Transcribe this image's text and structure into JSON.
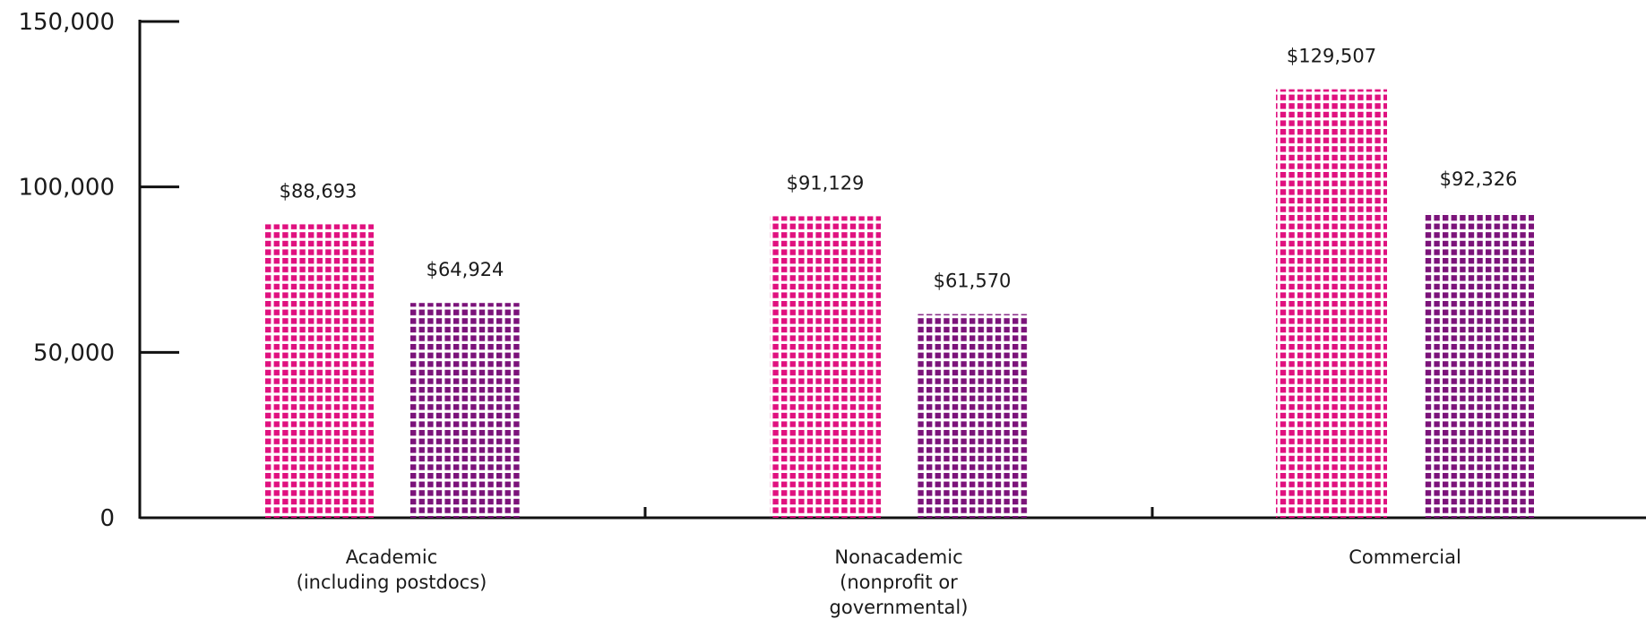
{
  "chart_data": {
    "type": "bar",
    "categories": [
      [
        "Academic",
        "(including postdocs)"
      ],
      [
        "Nonacademic",
        "(nonprofit or",
        "governmental)"
      ],
      [
        "Commercial"
      ]
    ],
    "series": [
      {
        "values": [
          88693,
          91129,
          129507
        ],
        "labels": [
          "$88,693",
          "$91,129",
          "$129,507"
        ],
        "color": "#e0117f"
      },
      {
        "values": [
          64924,
          61570,
          92326
        ],
        "labels": [
          "$64,924",
          "$61,570",
          "$92,326"
        ],
        "color": "#7b137a"
      }
    ],
    "yticks": [
      "0",
      "50,000",
      "100,000",
      "150,000"
    ],
    "ylim": [
      0,
      150000
    ],
    "legend": "none",
    "grid": false
  }
}
